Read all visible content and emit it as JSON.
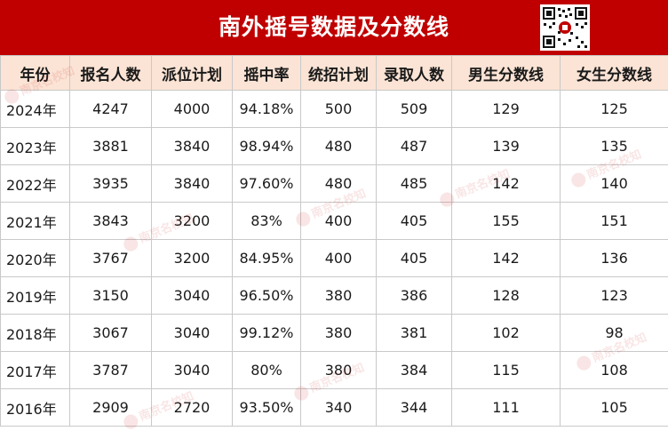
{
  "title": "南外摇号数据及分数线",
  "qr_icon": "qr-code-icon",
  "colors": {
    "banner": "#c00000",
    "header_bg": "#fbe4d5"
  },
  "columns": [
    "年份",
    "报名人数",
    "派位计划",
    "摇中率",
    "统招计划",
    "录取人数",
    "男生分数线",
    "女生分数线"
  ],
  "rows": [
    [
      "2024年",
      "4247",
      "4000",
      "94.18%",
      "500",
      "509",
      "129",
      "125"
    ],
    [
      "2023年",
      "3881",
      "3840",
      "98.94%",
      "480",
      "487",
      "139",
      "135"
    ],
    [
      "2022年",
      "3935",
      "3840",
      "97.60%",
      "480",
      "485",
      "142",
      "140"
    ],
    [
      "2021年",
      "3843",
      "3200",
      "83%",
      "400",
      "405",
      "155",
      "151"
    ],
    [
      "2020年",
      "3767",
      "3200",
      "84.95%",
      "400",
      "405",
      "142",
      "136"
    ],
    [
      "2019年",
      "3150",
      "3040",
      "96.50%",
      "380",
      "386",
      "128",
      "123"
    ],
    [
      "2018年",
      "3067",
      "3040",
      "99.12%",
      "380",
      "381",
      "102",
      "98"
    ],
    [
      "2017年",
      "3787",
      "3040",
      "80%",
      "380",
      "384",
      "115",
      "108"
    ],
    [
      "2016年",
      "2909",
      "2720",
      "93.50%",
      "340",
      "344",
      "111",
      "105"
    ]
  ],
  "watermark_text": "南京名校知"
}
